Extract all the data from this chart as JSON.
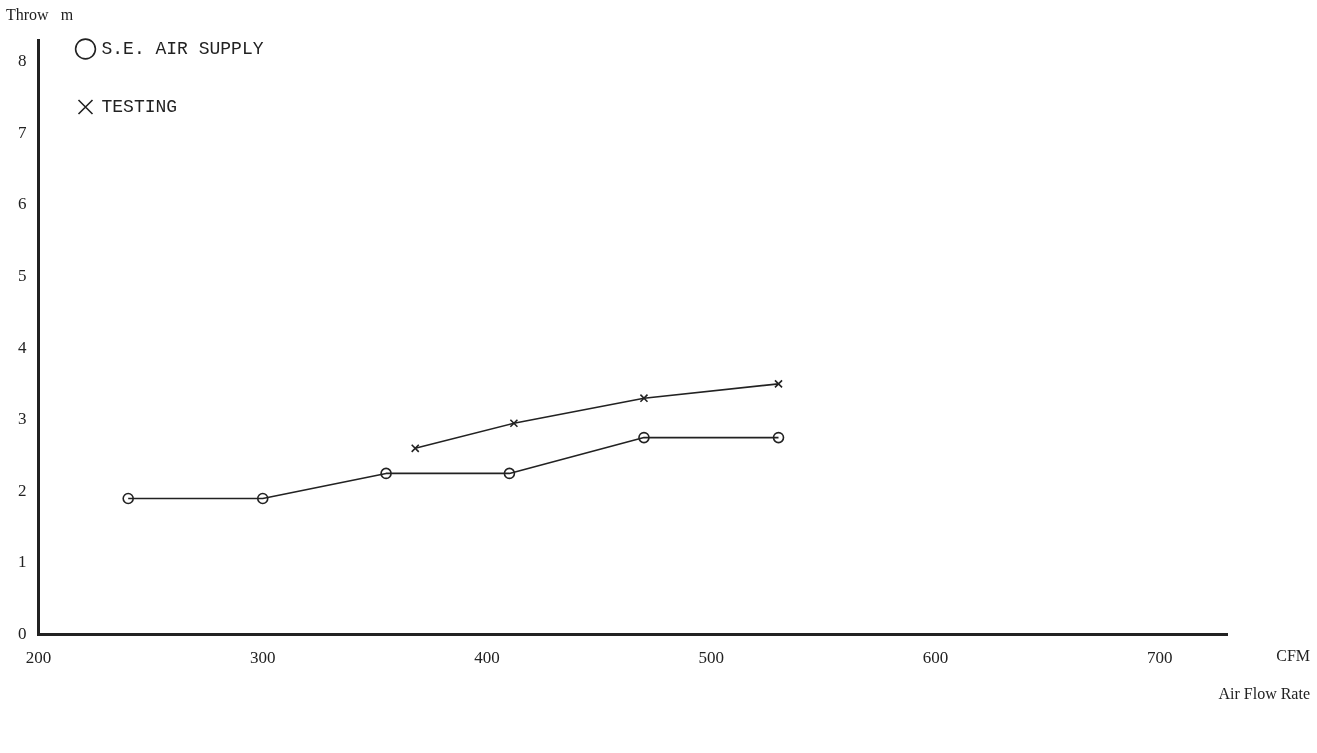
{
  "chart_data": {
    "type": "line",
    "xlabel": "Air Flow Rate",
    "ylabel": "Throw   m",
    "annotations": [
      "CFM"
    ],
    "x": [
      240,
      300,
      355,
      410,
      470,
      530
    ],
    "series": [
      {
        "name": "S.E. AIR SUPPLY",
        "color": "#222222",
        "marker": "circle",
        "values": [
          1.9,
          1.9,
          2.25,
          2.25,
          2.75,
          2.75
        ]
      },
      {
        "name": "TESTING",
        "color": "#222222",
        "marker": "cross",
        "x": [
          368,
          412,
          470,
          530
        ],
        "values": [
          2.6,
          2.95,
          3.3,
          3.5
        ]
      }
    ],
    "xlim": [
      200,
      730
    ],
    "xticks": [
      200,
      300,
      400,
      500,
      600,
      700
    ],
    "ylim": [
      0,
      8.3
    ],
    "yticks": [
      0,
      1,
      2,
      3,
      4,
      5,
      6,
      7,
      8
    ],
    "grid": false,
    "legend": "top left",
    "line_style": "solid"
  }
}
